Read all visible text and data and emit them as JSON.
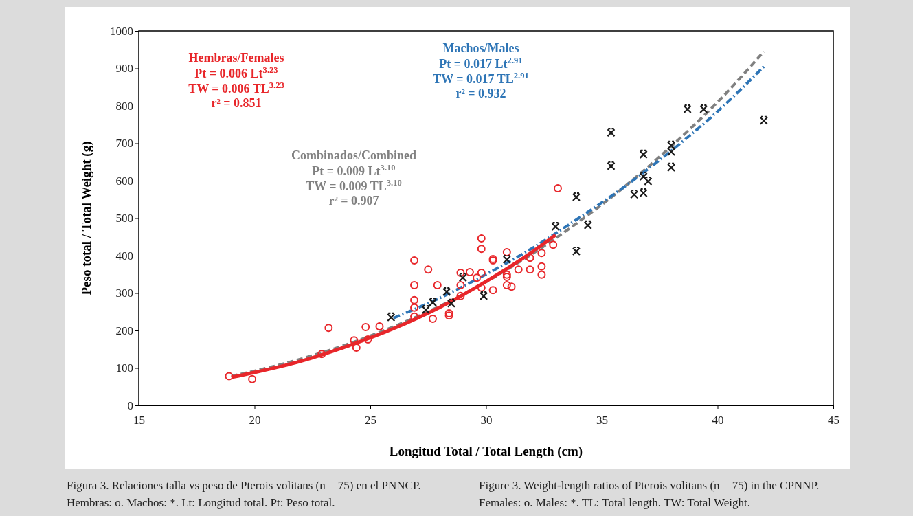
{
  "chart_data": {
    "type": "scatter",
    "xlabel": "Longitud Total / Total Length (cm)",
    "ylabel": "Peso total / Total Weight (g)",
    "xlim": [
      15,
      45
    ],
    "xticks": [
      15,
      20,
      25,
      30,
      35,
      40,
      45
    ],
    "ylim": [
      0,
      1000
    ],
    "yticks": [
      0,
      100,
      200,
      300,
      400,
      500,
      600,
      700,
      800,
      900,
      1000
    ],
    "grid": false,
    "series": [
      {
        "type": "scatter",
        "marker": "circle",
        "color": "#e8262a",
        "x": [
          18.9,
          19.9,
          22.9,
          23.2,
          24.3,
          24.4,
          24.8,
          24.9,
          25.4,
          26.9,
          26.9,
          26.9,
          26.9,
          26.9,
          27.5,
          27.7,
          27.9,
          28.4,
          28.4,
          28.9,
          28.9,
          28.9,
          29.3,
          29.6,
          29.8,
          29.8,
          29.8,
          29.8,
          30.3,
          30.3,
          30.3,
          30.9,
          30.9,
          30.9,
          30.9,
          31.1,
          31.4,
          31.9,
          31.9,
          32.4,
          32.4,
          32.4,
          32.9,
          33.1
        ],
        "values": [
          78,
          70,
          137,
          207,
          174,
          154,
          209,
          176,
          211,
          387,
          321,
          281,
          261,
          237,
          363,
          231,
          321,
          246,
          240,
          354,
          321,
          292,
          356,
          341,
          446,
          418,
          354,
          314,
          391,
          387,
          308,
          409,
          349,
          343,
          321,
          317,
          363,
          394,
          363,
          407,
          371,
          349,
          429,
          580
        ]
      },
      {
        "type": "scatter",
        "marker": "cross",
        "color": "#1a1a1a",
        "x": [
          25.9,
          27.4,
          27.7,
          28.3,
          28.5,
          29.0,
          29.9,
          30.9,
          33.0,
          33.9,
          33.9,
          34.4,
          35.4,
          35.4,
          36.4,
          36.8,
          36.8,
          36.8,
          37.0,
          38.0,
          38.0,
          38.0,
          38.7,
          39.4,
          42.0
        ],
        "values": [
          235,
          255,
          275,
          303,
          272,
          341,
          292,
          389,
          477,
          556,
          411,
          481,
          728,
          639,
          563,
          567,
          670,
          611,
          598,
          694,
          677,
          635,
          791,
          791,
          760
        ]
      },
      {
        "type": "line",
        "name": "Hembras/Females",
        "color": "#e8262a",
        "line_style": "solid",
        "x": [
          19,
          20,
          22,
          24,
          26,
          28,
          30,
          32,
          33
        ],
        "values": [
          75,
          88,
          118,
          158,
          205,
          262,
          331,
          410,
          455
        ]
      },
      {
        "type": "line",
        "name": "Machos/Males",
        "color": "#2e75b6",
        "line_style": "dotted",
        "x": [
          26,
          28,
          30,
          32,
          34,
          36,
          38,
          40,
          42
        ],
        "values": [
          233,
          287,
          350,
          420,
          500,
          585,
          680,
          785,
          905
        ]
      },
      {
        "type": "line",
        "name": "Combinados/Combined",
        "color": "#808080",
        "line_style": "dashed",
        "x": [
          19,
          20,
          22,
          24,
          26,
          28,
          30,
          32,
          34,
          36,
          38,
          40,
          42
        ],
        "values": [
          78,
          92,
          124,
          163,
          210,
          265,
          330,
          405,
          490,
          585,
          692,
          810,
          945
        ]
      }
    ],
    "annotations": [
      "Pt = 0.006 Lt$^{3.23}$",
      "TW = 0.006 TL$^{3.23}$",
      "r² = 0.851",
      "Pt = 0.017 Lt$^{2.91}$",
      "TW = 0.017 TL$^{2.91}$",
      "r² = 0.932",
      "Pt = 0.009 Lt$^{3.10}$",
      "TW = 0.009 TL$^{3.10}$",
      "r² = 0.907",
      "Figura 3. Relaciones talla vs peso de Pterois volitans (n = 75) en el PNNCP.",
      "Hembras: o. Machos: *. Lt: Longitud total. Pt: Peso total.",
      "Figure 3. Weight-length ratios of Pterois volitans (n = 75) in the CPNNP.",
      "Females: o. Males: *. TL: Total length. TW: Total Weight."
    ]
  }
}
